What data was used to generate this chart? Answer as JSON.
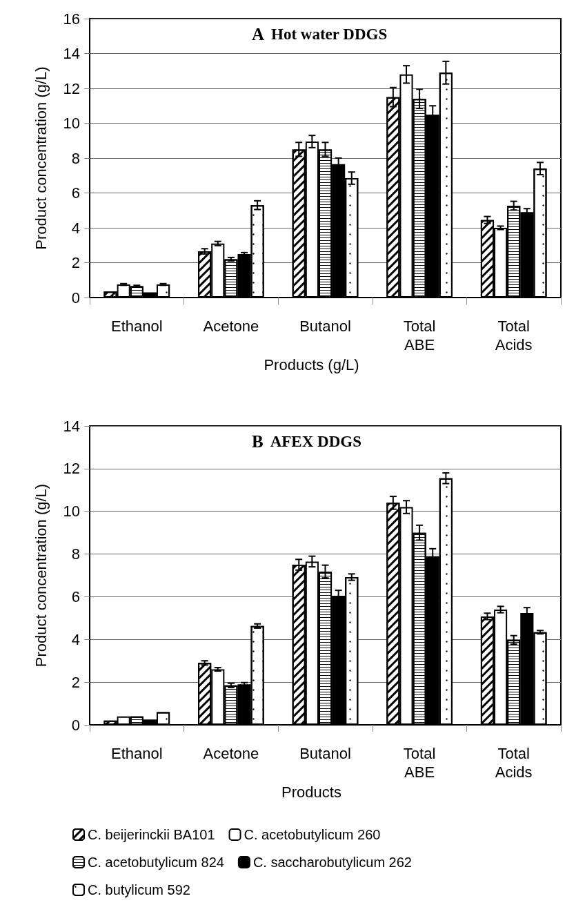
{
  "chart_data": [
    {
      "type": "bar",
      "title": "A Hot water DDGS",
      "xlabel": "Products (g/L)",
      "ylabel": "Product concentration (g/L)",
      "categories": [
        "Ethanol",
        "Acetone",
        "Butanol",
        "Total ABE",
        "Total Acids"
      ],
      "ylim": [
        0,
        16
      ],
      "yticks": [
        0,
        2,
        4,
        6,
        8,
        10,
        12,
        14,
        16
      ],
      "grid": "y",
      "legend": false,
      "series": [
        {
          "color": "#ffffff",
          "values": [
            0.35,
            2.65,
            8.5,
            11.5,
            4.45
          ],
          "errors": [
            null,
            0.15,
            0.4,
            0.55,
            0.2
          ]
        },
        {
          "color": "#ffffff",
          "values": [
            0.75,
            3.1,
            8.95,
            12.8,
            4.0
          ],
          "errors": [
            0.05,
            0.12,
            0.35,
            0.5,
            0.1
          ]
        },
        {
          "color": "#ffffff",
          "values": [
            0.65,
            2.2,
            8.5,
            11.4,
            5.27
          ],
          "errors": [
            0.05,
            0.1,
            0.4,
            0.55,
            0.25
          ]
        },
        {
          "color": "#000000",
          "values": [
            0.3,
            2.5,
            7.65,
            10.5,
            4.9
          ],
          "errors": [
            null,
            0.08,
            0.35,
            0.5,
            0.2
          ]
        },
        {
          "color": "#ffffff",
          "values": [
            0.75,
            5.3,
            6.85,
            12.9,
            7.4
          ],
          "errors": [
            0.05,
            0.25,
            0.35,
            0.65,
            0.35
          ]
        }
      ]
    },
    {
      "type": "bar",
      "title": "B AFEX DDGS",
      "xlabel": "Products",
      "ylabel": "Product concentration (g/L)",
      "categories": [
        "Ethanol",
        "Acetone",
        "Butanol",
        "Total ABE",
        "Total Acids"
      ],
      "ylim": [
        0,
        14
      ],
      "yticks": [
        0,
        2,
        4,
        6,
        8,
        10,
        12,
        14
      ],
      "grid": "y",
      "legend": "bottom",
      "series": [
        {
          "name": "C. beijerinckii BA101",
          "color": "#ffffff",
          "values": [
            0.2,
            2.9,
            7.5,
            10.4,
            5.08
          ],
          "errors": [
            null,
            0.1,
            0.25,
            0.3,
            0.15
          ]
        },
        {
          "name": "C. acetobutylicum 260",
          "color": "#ffffff",
          "values": [
            0.4,
            2.6,
            7.65,
            10.2,
            5.4
          ],
          "errors": [
            null,
            0.08,
            0.25,
            0.3,
            0.15
          ]
        },
        {
          "name": "C. acetobutylicum 824",
          "color": "#ffffff",
          "values": [
            0.4,
            1.85,
            7.18,
            9.0,
            3.98
          ],
          "errors": [
            null,
            0.1,
            0.3,
            0.35,
            0.2
          ]
        },
        {
          "name": "C. saccharobutylicum 262",
          "color": "#000000",
          "values": [
            0.25,
            1.9,
            6.05,
            7.9,
            5.24
          ],
          "errors": [
            null,
            0.08,
            0.25,
            0.35,
            0.25
          ]
        },
        {
          "name": "C. butylicum 592",
          "color": "#ffffff",
          "values": [
            0.6,
            4.63,
            6.92,
            11.55,
            4.34
          ],
          "errors": [
            null,
            0.1,
            0.15,
            0.25,
            0.08
          ]
        }
      ]
    }
  ]
}
